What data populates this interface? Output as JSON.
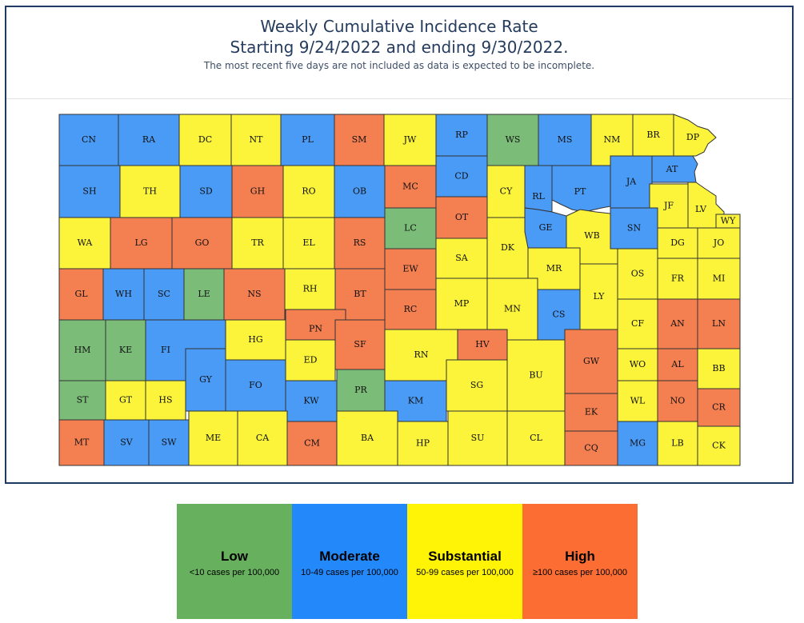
{
  "header": {
    "title_line1": "Weekly Cumulative Incidence Rate",
    "title_line2": "Starting 9/24/2022 and ending 9/30/2022.",
    "subtitle": "The most recent five days are not included as data is expected to be incomplete."
  },
  "colors": {
    "low": "#7bbd78",
    "moderate": "#4a9bf6",
    "substantial": "#fbf43a",
    "high": "#f47f50"
  },
  "legend": [
    {
      "key": "low",
      "label": "Low",
      "range": "<10 cases per 100,000",
      "color": "#67b05e"
    },
    {
      "key": "moderate",
      "label": "Moderate",
      "range": "10-49 cases per 100,000",
      "color": "#2388fa"
    },
    {
      "key": "substantial",
      "label": "Substantial",
      "range": "50-99 cases per 100,000",
      "color": "#fff405"
    },
    {
      "key": "high",
      "label": "High",
      "range": "≥100 cases per 100,000",
      "color": "#fb6d32"
    }
  ],
  "counties": [
    {
      "code": "CN",
      "level": "moderate"
    },
    {
      "code": "RA",
      "level": "moderate"
    },
    {
      "code": "DC",
      "level": "substantial"
    },
    {
      "code": "NT",
      "level": "substantial"
    },
    {
      "code": "PL",
      "level": "moderate"
    },
    {
      "code": "SM",
      "level": "high"
    },
    {
      "code": "JW",
      "level": "substantial"
    },
    {
      "code": "RP",
      "level": "moderate"
    },
    {
      "code": "WS",
      "level": "low"
    },
    {
      "code": "MS",
      "level": "moderate"
    },
    {
      "code": "NM",
      "level": "substantial"
    },
    {
      "code": "BR",
      "level": "substantial"
    },
    {
      "code": "DP",
      "level": "substantial"
    },
    {
      "code": "SH",
      "level": "moderate"
    },
    {
      "code": "TH",
      "level": "substantial"
    },
    {
      "code": "SD",
      "level": "moderate"
    },
    {
      "code": "GH",
      "level": "high"
    },
    {
      "code": "RO",
      "level": "substantial"
    },
    {
      "code": "OB",
      "level": "moderate"
    },
    {
      "code": "MC",
      "level": "high"
    },
    {
      "code": "CD",
      "level": "moderate"
    },
    {
      "code": "CY",
      "level": "substantial"
    },
    {
      "code": "RL",
      "level": "moderate"
    },
    {
      "code": "PT",
      "level": "moderate"
    },
    {
      "code": "JA",
      "level": "moderate"
    },
    {
      "code": "AT",
      "level": "moderate"
    },
    {
      "code": "JF",
      "level": "substantial"
    },
    {
      "code": "LV",
      "level": "substantial"
    },
    {
      "code": "WY",
      "level": "substantial"
    },
    {
      "code": "WA",
      "level": "substantial"
    },
    {
      "code": "LG",
      "level": "high"
    },
    {
      "code": "GO",
      "level": "high"
    },
    {
      "code": "TR",
      "level": "substantial"
    },
    {
      "code": "EL",
      "level": "substantial"
    },
    {
      "code": "RS",
      "level": "high"
    },
    {
      "code": "LC",
      "level": "low"
    },
    {
      "code": "OT",
      "level": "high"
    },
    {
      "code": "DK",
      "level": "substantial"
    },
    {
      "code": "GE",
      "level": "moderate"
    },
    {
      "code": "WB",
      "level": "substantial"
    },
    {
      "code": "SN",
      "level": "moderate"
    },
    {
      "code": "DG",
      "level": "substantial"
    },
    {
      "code": "JO",
      "level": "substantial"
    },
    {
      "code": "GL",
      "level": "high"
    },
    {
      "code": "WH",
      "level": "moderate"
    },
    {
      "code": "SC",
      "level": "moderate"
    },
    {
      "code": "LE",
      "level": "low"
    },
    {
      "code": "NS",
      "level": "high"
    },
    {
      "code": "RH",
      "level": "substantial"
    },
    {
      "code": "BT",
      "level": "high"
    },
    {
      "code": "EW",
      "level": "high"
    },
    {
      "code": "SA",
      "level": "substantial"
    },
    {
      "code": "MR",
      "level": "substantial"
    },
    {
      "code": "OS",
      "level": "substantial"
    },
    {
      "code": "FR",
      "level": "substantial"
    },
    {
      "code": "MI",
      "level": "substantial"
    },
    {
      "code": "LY",
      "level": "substantial"
    },
    {
      "code": "RC",
      "level": "high"
    },
    {
      "code": "MP",
      "level": "substantial"
    },
    {
      "code": "MN",
      "level": "substantial"
    },
    {
      "code": "CS",
      "level": "moderate"
    },
    {
      "code": "CF",
      "level": "substantial"
    },
    {
      "code": "AN",
      "level": "high"
    },
    {
      "code": "LN",
      "level": "high"
    },
    {
      "code": "HM",
      "level": "low"
    },
    {
      "code": "KE",
      "level": "low"
    },
    {
      "code": "FI",
      "level": "moderate"
    },
    {
      "code": "HG",
      "level": "substantial"
    },
    {
      "code": "PN",
      "level": "high"
    },
    {
      "code": "SF",
      "level": "high"
    },
    {
      "code": "RN",
      "level": "substantial"
    },
    {
      "code": "HV",
      "level": "high"
    },
    {
      "code": "BU",
      "level": "substantial"
    },
    {
      "code": "GW",
      "level": "high"
    },
    {
      "code": "WO",
      "level": "substantial"
    },
    {
      "code": "AL",
      "level": "high"
    },
    {
      "code": "BB",
      "level": "substantial"
    },
    {
      "code": "GY",
      "level": "moderate"
    },
    {
      "code": "ED",
      "level": "substantial"
    },
    {
      "code": "FO",
      "level": "moderate"
    },
    {
      "code": "ST",
      "level": "low"
    },
    {
      "code": "GT",
      "level": "substantial"
    },
    {
      "code": "HS",
      "level": "substantial"
    },
    {
      "code": "KW",
      "level": "moderate"
    },
    {
      "code": "PR",
      "level": "low"
    },
    {
      "code": "KM",
      "level": "moderate"
    },
    {
      "code": "SG",
      "level": "substantial"
    },
    {
      "code": "WL",
      "level": "substantial"
    },
    {
      "code": "NO",
      "level": "high"
    },
    {
      "code": "EK",
      "level": "high"
    },
    {
      "code": "CR",
      "level": "high"
    },
    {
      "code": "MT",
      "level": "high"
    },
    {
      "code": "SV",
      "level": "moderate"
    },
    {
      "code": "SW",
      "level": "moderate"
    },
    {
      "code": "ME",
      "level": "substantial"
    },
    {
      "code": "CA",
      "level": "substantial"
    },
    {
      "code": "CM",
      "level": "high"
    },
    {
      "code": "BA",
      "level": "substantial"
    },
    {
      "code": "HP",
      "level": "substantial"
    },
    {
      "code": "SU",
      "level": "substantial"
    },
    {
      "code": "CL",
      "level": "substantial"
    },
    {
      "code": "CQ",
      "level": "high"
    },
    {
      "code": "MG",
      "level": "moderate"
    },
    {
      "code": "LB",
      "level": "substantial"
    },
    {
      "code": "CK",
      "level": "substantial"
    }
  ]
}
